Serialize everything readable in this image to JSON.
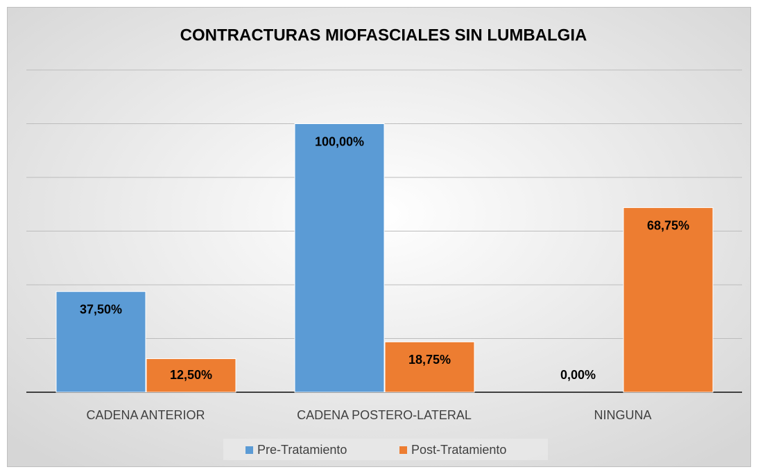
{
  "chart_data": {
    "type": "bar",
    "title": "CONTRACTURAS MIOFASCIALES SIN LUMBALGIA",
    "categories": [
      "CADENA ANTERIOR",
      "CADENA POSTERO-LATERAL",
      "NINGUNA"
    ],
    "series": [
      {
        "name": "Pre-Tratamiento",
        "color": "#5b9bd5",
        "values": [
          37.5,
          100,
          0
        ],
        "value_labels": [
          "37,50%",
          "100,00%",
          "0,00%"
        ]
      },
      {
        "name": "Post-Tratamiento",
        "color": "#ed7d31",
        "values": [
          12.5,
          18.75,
          68.75
        ],
        "value_labels": [
          "12,50%",
          "18,75%",
          "68,75%"
        ]
      }
    ],
    "ylim": [
      0,
      120
    ],
    "yticks": [
      0,
      20,
      40,
      60,
      80,
      100,
      120
    ],
    "grid": true,
    "legend": "bottom"
  }
}
